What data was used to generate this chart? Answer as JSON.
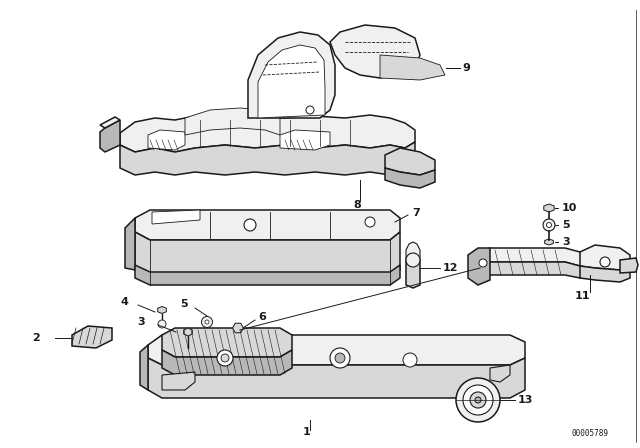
{
  "bg_color": "#ffffff",
  "line_color": "#1a1a1a",
  "catalog_number": "00005789",
  "fig_width": 6.4,
  "fig_height": 4.48,
  "dpi": 100,
  "lw_main": 1.1,
  "lw_thin": 0.6,
  "gray_light": "#f0f0f0",
  "gray_mid": "#d8d8d8",
  "gray_dark": "#b8b8b8",
  "gray_fill": "#e8e8e8",
  "hatch_color": "#888888"
}
